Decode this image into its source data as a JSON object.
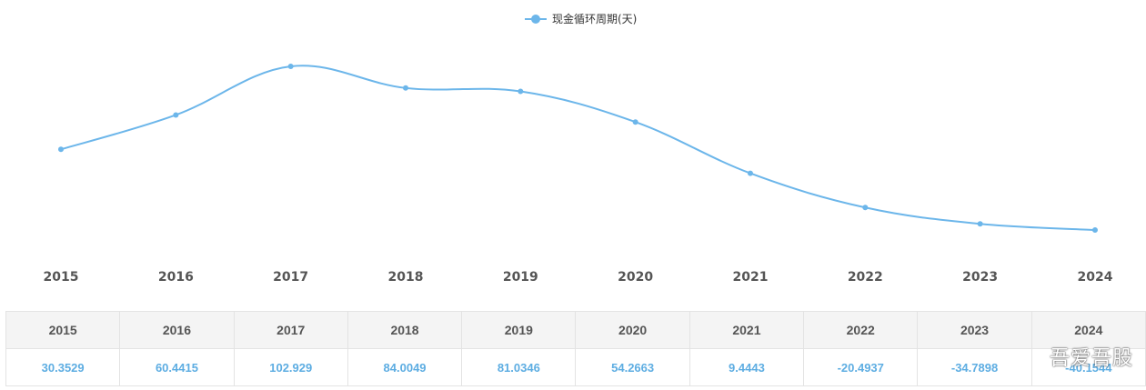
{
  "chart_data": {
    "type": "line",
    "categories": [
      "2015",
      "2016",
      "2017",
      "2018",
      "2019",
      "2020",
      "2021",
      "2022",
      "2023",
      "2024"
    ],
    "series": [
      {
        "name": "现金循环周期(天)",
        "values": [
          30.3529,
          60.4415,
          102.929,
          84.0049,
          81.0346,
          54.2663,
          9.4443,
          -20.4937,
          -34.7898,
          -40.1544
        ]
      }
    ],
    "legend_position": "top-center",
    "smooth": true,
    "grid": false,
    "y_axis_visible": false,
    "color": "#6cb6ea"
  },
  "table": {
    "headers": [
      "2015",
      "2016",
      "2017",
      "2018",
      "2019",
      "2020",
      "2021",
      "2022",
      "2023",
      "2024"
    ],
    "values": [
      "30.3529",
      "60.4415",
      "102.929",
      "84.0049",
      "81.0346",
      "54.2663",
      "9.4443",
      "-20.4937",
      "-34.7898",
      "-40.1544"
    ]
  },
  "watermark": "吾爱吾股"
}
